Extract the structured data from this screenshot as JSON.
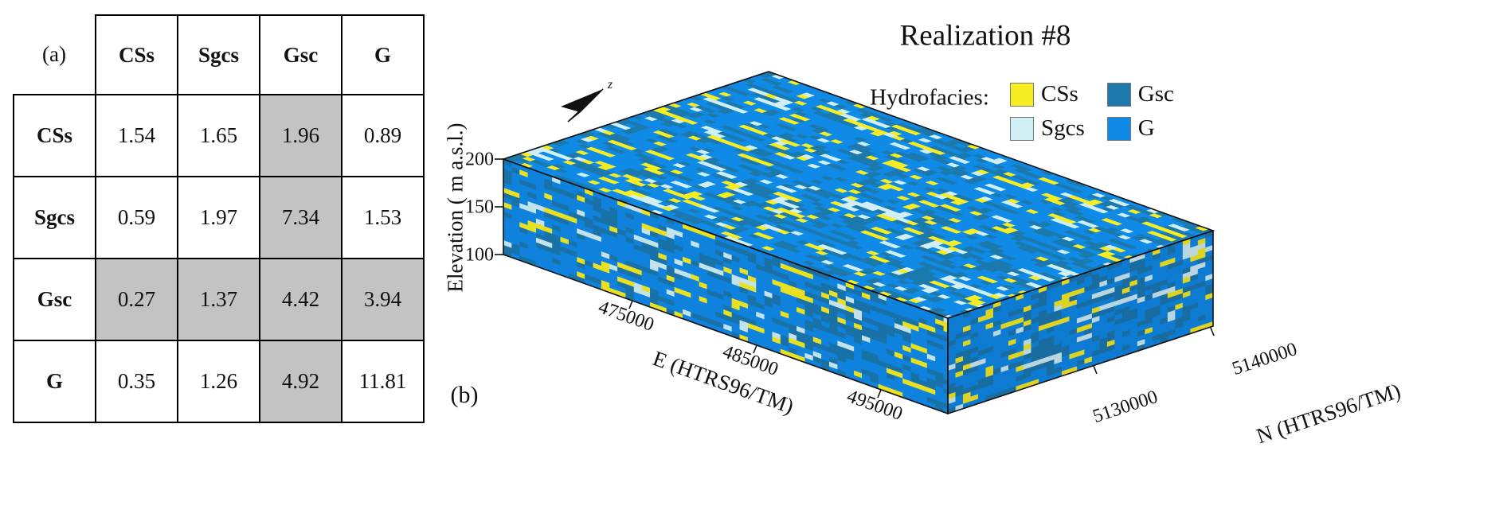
{
  "panel_a": {
    "label": "(a)",
    "col_headers": [
      "CSs",
      "Sgcs",
      "Gsc",
      "G"
    ],
    "rows": [
      {
        "header": "CSs",
        "values": [
          "1.54",
          "1.65",
          "1.96",
          "0.89"
        ]
      },
      {
        "header": "Sgcs",
        "values": [
          "0.59",
          "1.97",
          "7.34",
          "1.53"
        ]
      },
      {
        "header": "Gsc",
        "values": [
          "0.27",
          "1.37",
          "4.42",
          "3.94"
        ]
      },
      {
        "header": "G",
        "values": [
          "0.35",
          "1.26",
          "4.92",
          "11.81"
        ]
      }
    ],
    "highlighted_row": "Gsc",
    "highlighted_col": "Gsc",
    "highlight_color": "#c3c3c3"
  },
  "panel_b": {
    "label": "(b)",
    "title": "Realization #8",
    "north_arrow_label": "z",
    "legend": {
      "title": "Hydrofacies:",
      "items": [
        {
          "label": "CSs",
          "color": "#f6ec22"
        },
        {
          "label": "Gsc",
          "color": "#1b79ae"
        },
        {
          "label": "Sgcs",
          "color": "#cfeff5"
        },
        {
          "label": "G",
          "color": "#0f8ae6"
        }
      ]
    },
    "axes": {
      "elevation": {
        "label": "Elevation ( m a.s.l.)",
        "ticks": [
          "200",
          "150",
          "100"
        ]
      },
      "east": {
        "label": "E (HTRS96/TM)",
        "ticks": [
          "475000",
          "485000",
          "495000"
        ]
      },
      "north": {
        "label": "N (HTRS96/TM)",
        "ticks": [
          "5130000",
          "5140000"
        ]
      }
    }
  },
  "chart_data": [
    {
      "type": "table",
      "title": "(a) hydrofacies matrix",
      "columns": [
        "",
        "CSs",
        "Sgcs",
        "Gsc",
        "G"
      ],
      "rows": [
        [
          "CSs",
          1.54,
          1.65,
          1.96,
          0.89
        ],
        [
          "Sgcs",
          0.59,
          1.97,
          7.34,
          1.53
        ],
        [
          "Gsc",
          0.27,
          1.37,
          4.42,
          3.94
        ],
        [
          "G",
          0.35,
          1.26,
          4.92,
          11.81
        ]
      ],
      "highlight": "Gsc row and Gsc column cells shaded gray (#c3c3c3)"
    },
    {
      "type": "heatmap",
      "title": "Realization #8",
      "description": "3D block model of a simulated hydrofacies realization; volume dominated by facies G (blue) with scattered Gsc (teal), CSs (yellow) and Sgcs (pale cyan) cells",
      "categories": [
        "CSs",
        "Sgcs",
        "Gsc",
        "G"
      ],
      "x_axis": {
        "label": "E (HTRS96/TM)",
        "ticks": [
          475000,
          485000,
          495000
        ]
      },
      "y_axis": {
        "label": "N (HTRS96/TM)",
        "ticks": [
          5130000,
          5140000
        ]
      },
      "z_axis": {
        "label": "Elevation ( m a.s.l.)",
        "ticks": [
          200,
          150,
          100
        ]
      },
      "legend_position": "top-right"
    }
  ]
}
